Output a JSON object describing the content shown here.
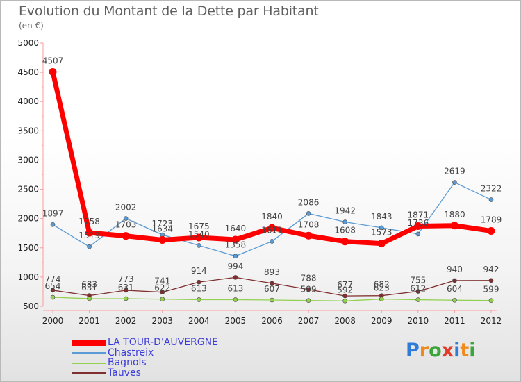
{
  "chart_data": {
    "type": "line",
    "title": "Evolution du Montant de la Dette par Habitant",
    "subtitle": "(en €)",
    "x": [
      "2000",
      "2001",
      "2002",
      "2003",
      "2004",
      "2005",
      "2006",
      "2007",
      "2008",
      "2009",
      "2010",
      "2011",
      "2012"
    ],
    "ylim": [
      500,
      5000
    ],
    "yticks": [
      500,
      1000,
      1500,
      2000,
      2500,
      3000,
      3500,
      4000,
      4500,
      5000
    ],
    "grid": false,
    "legend_position": "bottom-left",
    "series": [
      {
        "name": "LA TOUR-D'AUVERGNE",
        "color": "#ff0000",
        "values": [
          4507,
          1758,
          1703,
          1634,
          1675,
          1640,
          1840,
          1708,
          1608,
          1573,
          1871,
          1880,
          1789
        ]
      },
      {
        "name": "Chastreix",
        "color": "#5b9bd5",
        "values": [
          1897,
          1519,
          2002,
          1723,
          1540,
          1358,
          1611,
          2086,
          1942,
          1843,
          1736,
          2619,
          2322
        ]
      },
      {
        "name": "Bagnols",
        "color": "#92d050",
        "values": [
          654,
          631,
          631,
          622,
          613,
          613,
          607,
          599,
          592,
          623,
          612,
          604,
          599
        ]
      },
      {
        "name": "Tauves",
        "color": "#7f2f2f",
        "values": [
          774,
          683,
          773,
          741,
          914,
          994,
          893,
          788,
          677,
          682,
          755,
          940,
          942
        ]
      }
    ]
  },
  "logo": {
    "letters": [
      "P",
      "r",
      "o",
      "x",
      "i",
      "t",
      "i"
    ],
    "colors": [
      "#2f7bd8",
      "#f08a1c",
      "#3aa53a",
      "#e23c2a",
      "#2f7bd8",
      "#f08a1c",
      "#3aa53a"
    ]
  }
}
